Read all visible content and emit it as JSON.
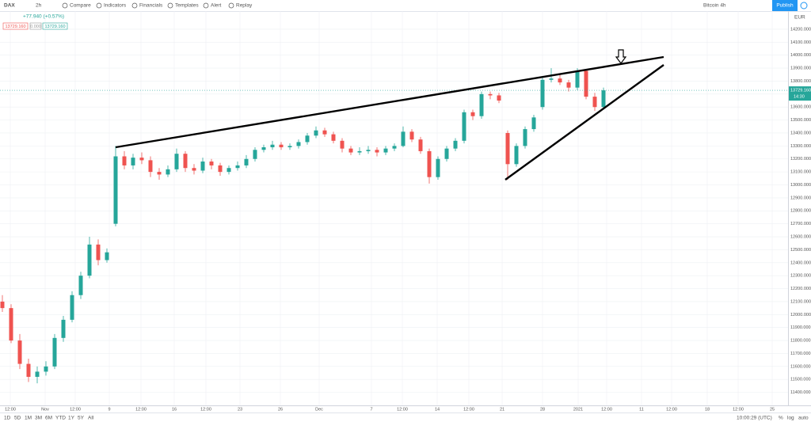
{
  "toolbar": {
    "symbol": "DAX",
    "interval": "2h",
    "buttons": [
      "Compare",
      "Indicators",
      "Financials",
      "Templates",
      "Alert",
      "Replay"
    ],
    "layout": "Bitcoin 4h",
    "publish": "Publish"
  },
  "legend": {
    "change": "+77.940 (+0.57%)",
    "values": [
      "13729.160",
      "0.000",
      "13729.160"
    ]
  },
  "chart_data": {
    "type": "candlestick",
    "y_unit": "EUR",
    "colors": {
      "up": "#26a69a",
      "down": "#ef5350"
    },
    "grid": true,
    "categories": [
      "12:00",
      "Nov",
      "12:00",
      "9",
      "12:00",
      "16",
      "12:00",
      "23",
      "26",
      "Dec",
      "7",
      "12:00",
      "14",
      "12:00",
      "21",
      "28",
      "2021",
      "12:00",
      "11",
      "12:00",
      "18",
      "12:00",
      "25"
    ],
    "candles": [
      [
        12100,
        12150,
        12020,
        12050
      ],
      [
        12050,
        12080,
        11780,
        11800
      ],
      [
        11800,
        11850,
        11580,
        11620
      ],
      [
        11620,
        11660,
        11480,
        11520
      ],
      [
        11520,
        11600,
        11470,
        11560
      ],
      [
        11560,
        11640,
        11530,
        11600
      ],
      [
        11600,
        11850,
        11580,
        11820
      ],
      [
        11820,
        11990,
        11790,
        11960
      ],
      [
        11960,
        12180,
        11940,
        12150
      ],
      [
        12150,
        12330,
        12120,
        12300
      ],
      [
        12300,
        12600,
        12280,
        12540
      ],
      [
        12540,
        12580,
        12380,
        12420
      ],
      [
        12420,
        12510,
        12400,
        12480
      ],
      [
        12700,
        13300,
        12680,
        13220
      ],
      [
        13220,
        13260,
        13120,
        13150
      ],
      [
        13150,
        13240,
        13120,
        13210
      ],
      [
        13210,
        13250,
        13160,
        13190
      ],
      [
        13190,
        13220,
        13060,
        13100
      ],
      [
        13100,
        13130,
        13040,
        13080
      ],
      [
        13080,
        13150,
        13060,
        13120
      ],
      [
        13120,
        13280,
        13100,
        13240
      ],
      [
        13240,
        13260,
        13100,
        13130
      ],
      [
        13130,
        13160,
        13080,
        13110
      ],
      [
        13110,
        13210,
        13090,
        13180
      ],
      [
        13180,
        13200,
        13120,
        13150
      ],
      [
        13150,
        13170,
        13070,
        13100
      ],
      [
        13100,
        13150,
        13080,
        13130
      ],
      [
        13130,
        13180,
        13110,
        13150
      ],
      [
        13150,
        13230,
        13130,
        13200
      ],
      [
        13200,
        13290,
        13180,
        13270
      ],
      [
        13270,
        13310,
        13250,
        13290
      ],
      [
        13290,
        13340,
        13270,
        13310
      ],
      [
        13310,
        13330,
        13270,
        13290
      ],
      [
        13290,
        13320,
        13270,
        13300
      ],
      [
        13300,
        13350,
        13280,
        13330
      ],
      [
        13330,
        13400,
        13310,
        13380
      ],
      [
        13380,
        13450,
        13360,
        13420
      ],
      [
        13420,
        13440,
        13370,
        13390
      ],
      [
        13390,
        13410,
        13320,
        13340
      ],
      [
        13340,
        13360,
        13250,
        13280
      ],
      [
        13280,
        13300,
        13230,
        13250
      ],
      [
        13250,
        13290,
        13230,
        13260
      ],
      [
        13260,
        13300,
        13240,
        13270
      ],
      [
        13270,
        13290,
        13220,
        13250
      ],
      [
        13250,
        13300,
        13230,
        13280
      ],
      [
        13280,
        13320,
        13260,
        13300
      ],
      [
        13300,
        13450,
        13290,
        13410
      ],
      [
        13410,
        13430,
        13330,
        13350
      ],
      [
        13350,
        13370,
        13240,
        13260
      ],
      [
        13260,
        13280,
        13010,
        13060
      ],
      [
        13060,
        13220,
        13040,
        13200
      ],
      [
        13200,
        13300,
        13180,
        13280
      ],
      [
        13280,
        13360,
        13260,
        13340
      ],
      [
        13340,
        13580,
        13320,
        13560
      ],
      [
        13560,
        13580,
        13500,
        13530
      ],
      [
        13530,
        13720,
        13510,
        13700
      ],
      [
        13700,
        13720,
        13660,
        13690
      ],
      [
        13690,
        13710,
        13630,
        13650
      ],
      [
        13400,
        13420,
        13040,
        13160
      ],
      [
        13160,
        13320,
        13140,
        13300
      ],
      [
        13300,
        13450,
        13280,
        13430
      ],
      [
        13430,
        13540,
        13410,
        13520
      ],
      [
        13600,
        13830,
        13580,
        13810
      ],
      [
        13810,
        13900,
        13790,
        13820
      ],
      [
        13820,
        13850,
        13770,
        13790
      ],
      [
        13790,
        13810,
        13720,
        13750
      ],
      [
        13750,
        13900,
        13730,
        13880
      ],
      [
        13880,
        13890,
        13660,
        13680
      ],
      [
        13680,
        13710,
        13570,
        13600
      ],
      [
        13600,
        13750,
        13590,
        13729.16
      ]
    ],
    "last_price": {
      "value": 13729.16,
      "label": "13729.160"
    },
    "countdown": "14:30",
    "ylim": [
      11300,
      14340
    ],
    "yticks": [
      {
        "value": 11400,
        "label": "11400.000"
      },
      {
        "value": 11500,
        "label": "11500.000"
      },
      {
        "value": 11600,
        "label": "11600.000"
      },
      {
        "value": 11700,
        "label": "11700.000"
      },
      {
        "value": 11800,
        "label": "11800.000"
      },
      {
        "value": 11900,
        "label": "11900.000"
      },
      {
        "value": 12000,
        "label": "12000.000"
      },
      {
        "value": 12100,
        "label": "12100.000"
      },
      {
        "value": 12200,
        "label": "12200.000"
      },
      {
        "value": 12300,
        "label": "12300.000"
      },
      {
        "value": 12400,
        "label": "12400.000"
      },
      {
        "value": 12500,
        "label": "12500.000"
      },
      {
        "value": 12600,
        "label": "12600.000"
      },
      {
        "value": 12700,
        "label": "12700.000"
      },
      {
        "value": 12800,
        "label": "12800.000"
      },
      {
        "value": 12900,
        "label": "12900.000"
      },
      {
        "value": 13000,
        "label": "13000.000"
      },
      {
        "value": 13100,
        "label": "13100.000"
      },
      {
        "value": 13200,
        "label": "13200.000"
      },
      {
        "value": 13300,
        "label": "13300.000"
      },
      {
        "value": 13400,
        "label": "13400.000"
      },
      {
        "value": 13500,
        "label": "13500.000"
      },
      {
        "value": 13600,
        "label": "13600.000"
      },
      {
        "value": 13700,
        "label": "13700.000"
      },
      {
        "value": 13800,
        "label": "13800.000"
      },
      {
        "value": 13900,
        "label": "13900.000"
      },
      {
        "value": 14000,
        "label": "14000.000"
      },
      {
        "value": 14100,
        "label": "14100.000"
      },
      {
        "value": 14200,
        "label": "14200.000"
      }
    ]
  },
  "bottom_bar": {
    "ranges": [
      "1D",
      "5D",
      "1M",
      "3M",
      "6M",
      "YTD",
      "1Y",
      "5Y",
      "All"
    ],
    "clock": "10:00:29 (UTC)",
    "options": [
      "%",
      "log",
      "auto"
    ]
  }
}
